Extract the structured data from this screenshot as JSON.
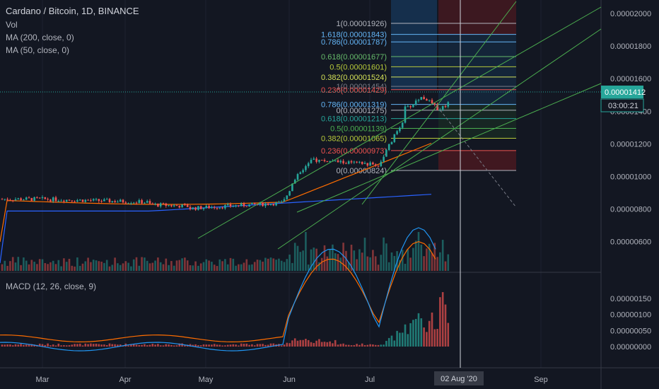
{
  "chart_data": [
    {
      "type": "candlestick",
      "title": "Cardano / Bitcoin, 1D, BINANCE",
      "indicators": [
        "Vol",
        "MA (200, close, 0)",
        "MA (50, close, 0)"
      ],
      "last_price": "0.00001412",
      "countdown": "03:00:21",
      "y_ticks": [
        "0.00002000",
        "0.00001800",
        "0.00001600",
        "0.00001400",
        "0.00001200",
        "0.00001000",
        "0.00000800",
        "0.00000600"
      ],
      "x_ticks": [
        "Mar",
        "Apr",
        "May",
        "Jun",
        "Jul",
        "Sep"
      ],
      "cursor_date": "02 Aug '20",
      "fib_retracement": [
        {
          "label": "1(0.00001454)",
          "value": 1.454e-05
        },
        {
          "label": "0.786(0.00001319)",
          "value": 1.319e-05
        },
        {
          "label": "0.618(0.00001213)",
          "value": 1.213e-05
        },
        {
          "label": "0.5(0.00001139)",
          "value": 1.139e-05
        },
        {
          "label": "0.382(0.00001065)",
          "value": 1.065e-05
        },
        {
          "label": "0.236(0.00000973)",
          "value": 9.73e-06
        },
        {
          "label": "0(0.00000824)",
          "value": 8.24e-06
        }
      ],
      "fib_extension": [
        {
          "label": "1(0.00001926)",
          "value": 1.926e-05
        },
        {
          "label": "1.618(0.00001843)",
          "value": 1.843e-05
        },
        {
          "label": "0.786(0.00001787)",
          "value": 1.787e-05
        },
        {
          "label": "0.618(0.00001677)",
          "value": 1.677e-05
        },
        {
          "label": "0.5(0.00001601)",
          "value": 1.601e-05
        },
        {
          "label": "0.382(0.00001524)",
          "value": 1.524e-05
        },
        {
          "label": "0.236(0.00001429)",
          "value": 1.429e-05
        },
        {
          "label": "0(0.00001275)",
          "value": 1.275e-05
        }
      ],
      "colors": {
        "up": "#26a69a",
        "down": "#ef5350",
        "ma200": "#2962ff",
        "ma50": "#ff6d00",
        "trend": "#4caf50"
      }
    },
    {
      "type": "line",
      "title": "MACD (12, 26, close, 9)",
      "y_ticks": [
        "0.00000150",
        "0.00000100",
        "0.00000050",
        "0.00000000"
      ],
      "colors": {
        "macd": "#2196f3",
        "signal": "#ff6d00"
      }
    }
  ]
}
